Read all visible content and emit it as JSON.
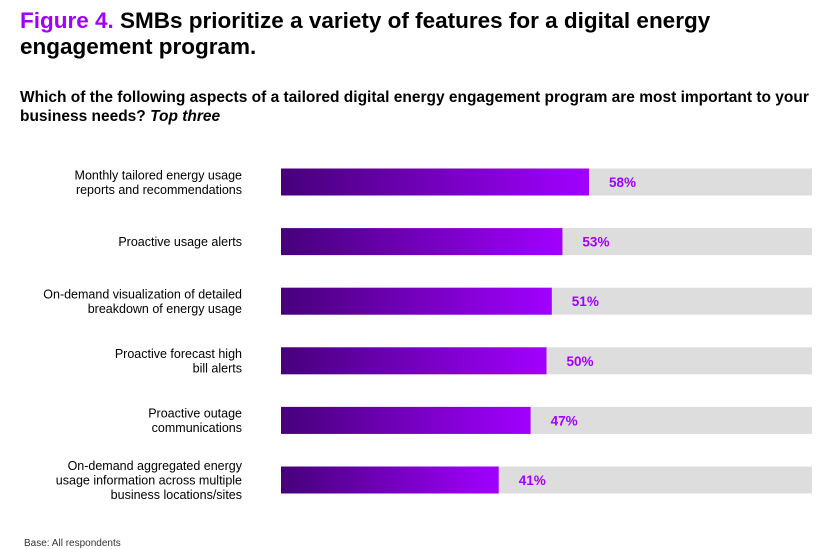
{
  "header": {
    "figure_number": "Figure 4.",
    "figure_title": "SMBs prioritize a variety of features for a digital energy engagement program.",
    "question": "Which of the following aspects of a tailored digital energy engagement program are most important to your business needs?",
    "question_emphasis": "Top three"
  },
  "footer": {
    "base_note": "Base: All respondents"
  },
  "colors": {
    "bar_gradient_start": "#46007a",
    "bar_gradient_end": "#a100ff",
    "track": "#dddddd",
    "value_label": "#a100ff",
    "figure_number": "#a100ff"
  },
  "chart_data": {
    "type": "bar",
    "orientation": "horizontal",
    "categories": [
      "Monthly tailored energy usage\nreports and recommendations",
      "Proactive usage alerts",
      "On-demand visualization of detailed\nbreakdown of energy usage",
      "Proactive forecast high\nbill alerts",
      "Proactive outage\ncommunications",
      "On-demand aggregated energy\nusage information across multiple\nbusiness locations/sites"
    ],
    "values": [
      58,
      53,
      51,
      50,
      47,
      41
    ],
    "value_labels": [
      "58%",
      "53%",
      "51%",
      "50%",
      "47%",
      "41%"
    ],
    "unit": "%",
    "xlim": [
      0,
      100
    ],
    "grid": false,
    "legend": "none"
  }
}
